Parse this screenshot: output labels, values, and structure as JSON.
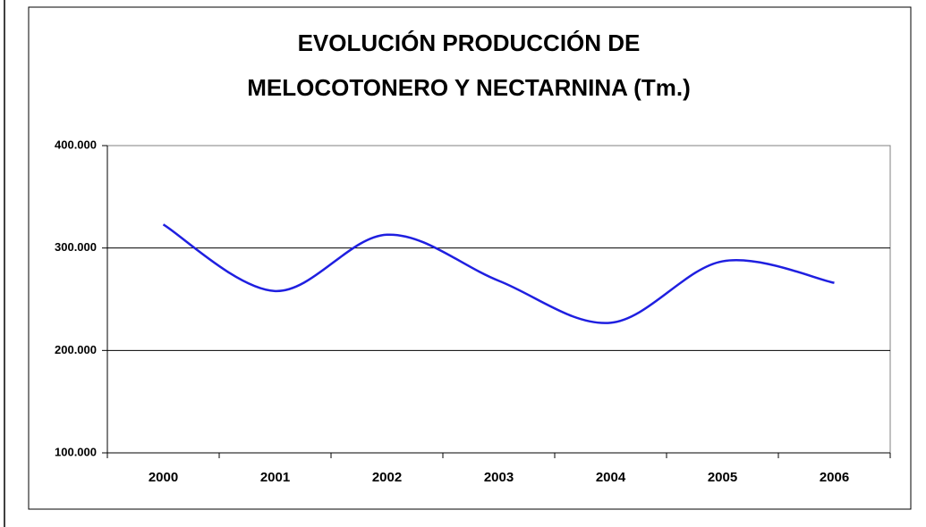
{
  "chart_data": {
    "type": "line",
    "title": [
      "EVOLUCIÓN PRODUCCIÓN DE",
      "MELOCOTONERO Y NECTARNINA (Tm.)"
    ],
    "categories": [
      "2000",
      "2001",
      "2002",
      "2003",
      "2004",
      "2005",
      "2006"
    ],
    "values": [
      323000,
      258000,
      313000,
      268000,
      227000,
      287000,
      266000
    ],
    "color": "#1f1fe0",
    "smooth": true,
    "ylim": [
      100000,
      400000
    ],
    "yticks": [
      {
        "value": 100000,
        "label": "100.000"
      },
      {
        "value": 200000,
        "label": "200.000"
      },
      {
        "value": 300000,
        "label": "300.000"
      },
      {
        "value": 400000,
        "label": "400.000"
      }
    ],
    "grid": true
  }
}
